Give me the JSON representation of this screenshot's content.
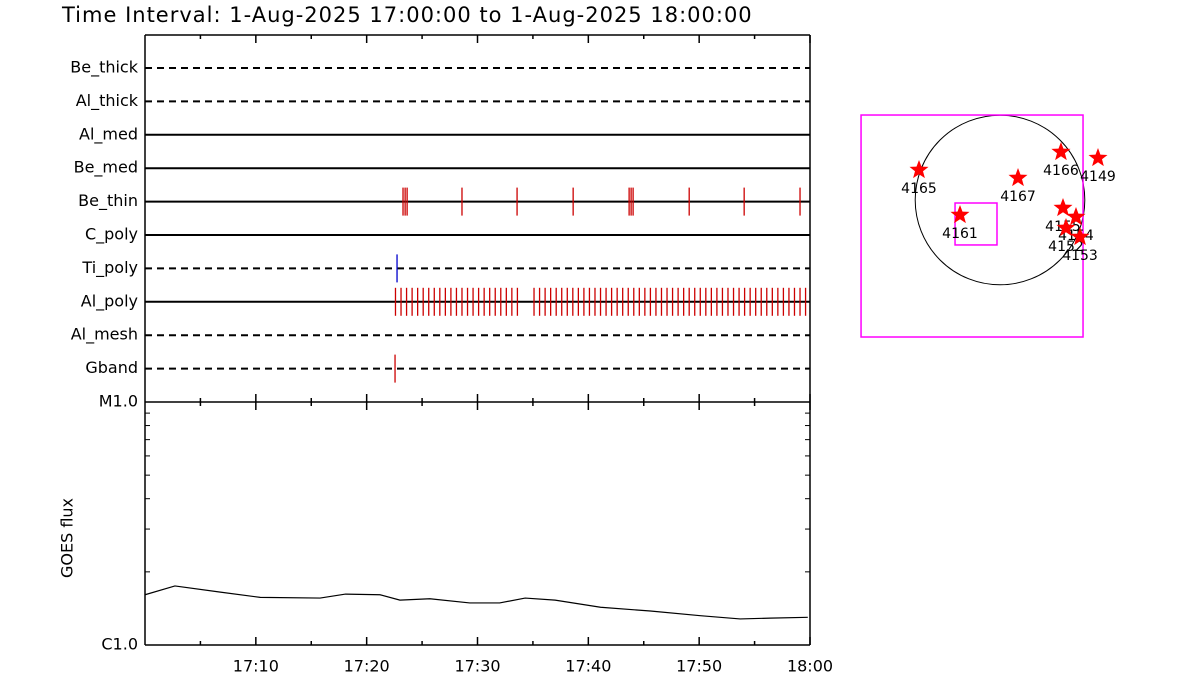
{
  "chart_data": [
    {
      "type": "event",
      "title": "Time Interval:  1-Aug-2025 17:00:00 to  1-Aug-2025 18:00:00",
      "xlim": [
        0,
        60
      ],
      "xticks": [
        {
          "value": 10,
          "label": "17:10"
        },
        {
          "value": 20,
          "label": "17:20"
        },
        {
          "value": 30,
          "label": "17:30"
        },
        {
          "value": 40,
          "label": "17:40"
        },
        {
          "value": 50,
          "label": "17:50"
        },
        {
          "value": 60,
          "label": "18:00"
        }
      ],
      "xminorticks": [
        5,
        15,
        25,
        35,
        45,
        55
      ],
      "series": [
        {
          "name": "Be_thick",
          "line": "dashed",
          "color": "#cc0000",
          "values": []
        },
        {
          "name": "Al_thick",
          "line": "dashed",
          "color": "#cc0000",
          "values": []
        },
        {
          "name": "Al_med",
          "line": "solid",
          "color": "#cc0000",
          "values": []
        },
        {
          "name": "Be_med",
          "line": "solid",
          "color": "#cc0000",
          "values": []
        },
        {
          "name": "Be_thin",
          "line": "solid",
          "color": "#cc0000",
          "values": [
            23.28,
            23.47,
            23.65,
            28.6,
            33.57,
            38.63,
            43.68,
            43.86,
            44.04,
            49.1,
            54.06,
            59.1
          ]
        },
        {
          "name": "C_poly",
          "line": "solid",
          "color": "#cc0000",
          "values": []
        },
        {
          "name": "Ti_poly",
          "line": "dashed",
          "color": "#0000cc",
          "values": [
            22.74
          ]
        },
        {
          "name": "Al_poly",
          "line": "solid",
          "color": "#cc0000",
          "values": [
            22.6,
            23.1,
            23.6,
            24.1,
            24.6,
            25.1,
            25.6,
            26.1,
            26.6,
            27.1,
            27.6,
            28.1,
            28.6,
            29.1,
            29.6,
            30.1,
            30.6,
            31.1,
            31.6,
            32.1,
            32.6,
            33.1,
            33.6,
            35.1,
            35.6,
            36.1,
            36.6,
            37.1,
            37.6,
            38.1,
            38.6,
            39.1,
            39.6,
            40.1,
            40.6,
            41.1,
            41.6,
            42.1,
            42.6,
            43.1,
            43.6,
            44.1,
            44.6,
            45.1,
            45.6,
            46.1,
            46.6,
            47.1,
            47.6,
            48.1,
            48.6,
            49.1,
            49.6,
            50.1,
            50.6,
            51.1,
            51.6,
            52.1,
            52.6,
            53.1,
            53.6,
            54.1,
            54.6,
            55.1,
            55.6,
            56.1,
            56.6,
            57.1,
            57.6,
            58.1,
            58.6,
            59.1,
            59.6
          ]
        },
        {
          "name": "Al_mesh",
          "line": "dashed",
          "color": "#cc0000",
          "values": []
        },
        {
          "name": "Gband",
          "line": "dashed",
          "color": "#cc0000",
          "values": [
            22.56
          ]
        }
      ]
    },
    {
      "type": "line",
      "ylabel": "GOES flux",
      "log": true,
      "xlim": [
        0,
        60
      ],
      "ylim": [
        1e-06,
        1e-05
      ],
      "yticks": [
        {
          "value": 1e-06,
          "label": "C1.0"
        },
        {
          "value": 1e-05,
          "label": "M1.0"
        }
      ],
      "yminorticks": [
        2e-06,
        3e-06,
        4e-06,
        5e-06,
        6e-06,
        7e-06,
        8e-06,
        9e-06
      ],
      "color": "#000000",
      "x": [
        0,
        2.7,
        6.8,
        10.4,
        15.8,
        18.1,
        21.2,
        23.0,
        25.7,
        29.3,
        32.0,
        34.3,
        37.0,
        41.1,
        45.6,
        50.1,
        53.7,
        56.4,
        59.8
      ],
      "values": [
        1.61e-06,
        1.75e-06,
        1.65e-06,
        1.57e-06,
        1.56e-06,
        1.62e-06,
        1.61e-06,
        1.53e-06,
        1.55e-06,
        1.49e-06,
        1.49e-06,
        1.56e-06,
        1.53e-06,
        1.43e-06,
        1.38e-06,
        1.32e-06,
        1.28e-06,
        1.29e-06,
        1.3e-06
      ]
    },
    {
      "type": "scatter",
      "xlim": [
        -1800,
        1800
      ],
      "ylim": [
        -1800,
        1800
      ],
      "disk_radius": 960,
      "color": "#ff0000",
      "box_color": "#ff00ff",
      "labels": [
        "4165",
        "4161",
        "4167",
        "4166",
        "4149",
        "4155",
        "4154",
        "4152",
        "4153"
      ],
      "x": [
        -917,
        -453,
        204,
        690,
        1109,
        713,
        860,
        747,
        906
      ],
      "y": [
        340,
        -170,
        249,
        543,
        475,
        -91,
        -192,
        -317,
        -419
      ],
      "boxes": [
        {
          "x0": -1573,
          "x1": 940,
          "y0": -1551,
          "y1": 962
        },
        {
          "x0": -509,
          "x1": -34,
          "y0": -509,
          "y1": -34
        }
      ]
    }
  ]
}
